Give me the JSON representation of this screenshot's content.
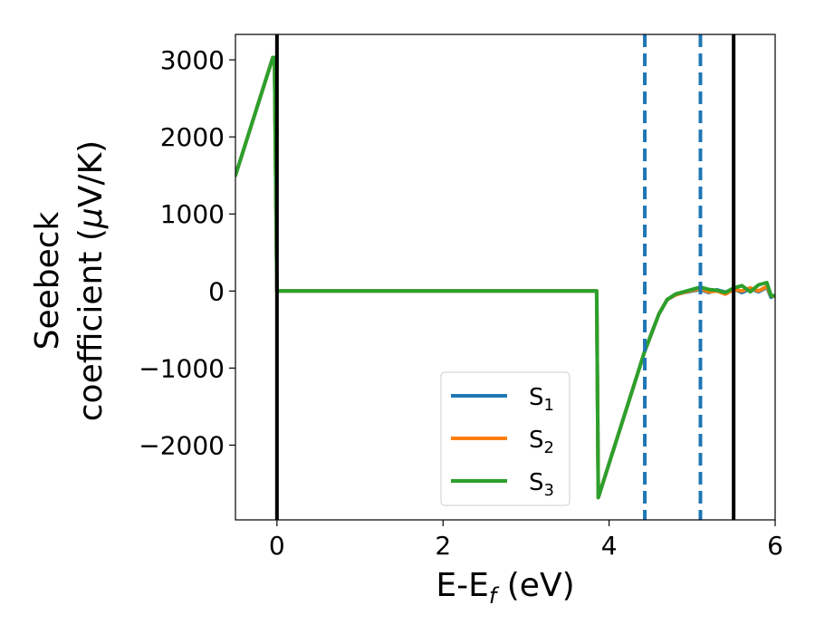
{
  "chart_data": {
    "type": "line",
    "xlabel": "E-E",
    "xlabel_sub": "f",
    "xlabel_unit": " (eV)",
    "ylabel_line1": "Seebeck",
    "ylabel_line2": "coefficient  (",
    "ylabel_mu": "μ",
    "ylabel_unit": "V/K)",
    "xlim": [
      -0.5,
      6.0
    ],
    "ylim": [
      -2970,
      3330
    ],
    "xticks": [
      0,
      2,
      4,
      6
    ],
    "xtick_labels": [
      "0",
      "2",
      "4",
      "6"
    ],
    "yticks": [
      -2000,
      -1000,
      0,
      1000,
      2000,
      3000
    ],
    "ytick_labels": [
      "−2000",
      "−1000",
      "0",
      "1000",
      "2000",
      "3000"
    ],
    "vlines_solid": [
      0.0,
      5.5
    ],
    "vlines_dashed": [
      4.43,
      5.1
    ],
    "legend_position": "lower-center",
    "series": [
      {
        "name": "S",
        "subscript": "1",
        "color": "#1f77b4",
        "x": [
          -0.5,
          -0.05,
          -0.03,
          0.0,
          3.85,
          3.87,
          4.43,
          4.6,
          4.7,
          4.8,
          4.9,
          5.0,
          5.1,
          5.2,
          5.3,
          5.4,
          5.5,
          5.6,
          5.7,
          5.8,
          5.9,
          5.95,
          6.0
        ],
        "y": [
          1500,
          3030,
          3030,
          0,
          0,
          -2680,
          -780,
          -300,
          -110,
          -50,
          -20,
          0,
          20,
          -20,
          15,
          -15,
          25,
          -20,
          30,
          -10,
          50,
          -80,
          -60
        ]
      },
      {
        "name": "S",
        "subscript": "2",
        "color": "#ff7f0e",
        "x": [
          -0.5,
          -0.05,
          -0.03,
          0.0,
          3.85,
          3.87,
          4.43,
          4.6,
          4.7,
          4.8,
          4.9,
          5.0,
          5.1,
          5.2,
          5.3,
          5.4,
          5.5,
          5.6,
          5.7,
          5.8,
          5.9,
          5.95,
          6.0
        ],
        "y": [
          1500,
          3030,
          3030,
          0,
          0,
          -2680,
          -780,
          -300,
          -110,
          -50,
          -20,
          10,
          30,
          -10,
          0,
          -40,
          20,
          0,
          40,
          0,
          60,
          -60,
          -70
        ]
      },
      {
        "name": "S",
        "subscript": "3",
        "color": "#2ca02c",
        "x": [
          -0.5,
          -0.05,
          -0.03,
          0.0,
          3.85,
          3.87,
          4.43,
          4.6,
          4.7,
          4.8,
          4.9,
          5.0,
          5.1,
          5.2,
          5.3,
          5.4,
          5.5,
          5.6,
          5.7,
          5.8,
          5.9,
          5.95,
          6.0
        ],
        "y": [
          1500,
          3030,
          3030,
          0,
          0,
          -2680,
          -780,
          -300,
          -110,
          -40,
          -10,
          20,
          50,
          20,
          10,
          -20,
          40,
          70,
          -10,
          80,
          110,
          -60,
          -60
        ]
      }
    ]
  }
}
